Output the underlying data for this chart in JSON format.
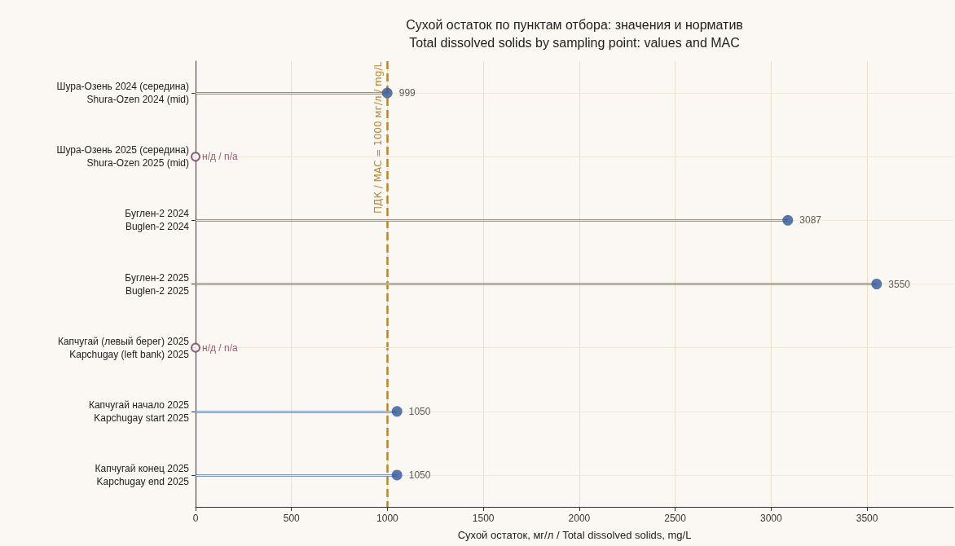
{
  "chart_data": {
    "type": "lollipop",
    "orientation": "horizontal",
    "title": "Сухой остаток по пунктам отбора: значения и норматив\nTotal dissolved solids by sampling point: values and MAC",
    "xlabel": "Сухой остаток, мг/л / Total dissolved solids, mg/L",
    "categories": [
      "Шура-Озень 2024 (середина)\nShura-Ozen 2024 (mid)",
      "Шура-Озень 2025 (середина)\nShura-Ozen 2025 (mid)",
      "Буглен-2 2024\nBuglen-2 2024",
      "Буглен-2 2025\nBuglen-2 2025",
      "Капчугай (левый берег) 2025\nKapchugay (left bank) 2025",
      "Капчугай начало 2025\nKapchugay start 2025",
      "Капчугай конец 2025\nKapchugay end 2025"
    ],
    "series": [
      {
        "color": "#2f5597",
        "values": [
          999,
          null,
          3087,
          3550,
          null,
          1050,
          1050
        ]
      }
    ],
    "xlim": [
      0,
      3950
    ],
    "xticks": [
      0,
      500,
      1000,
      1500,
      2000,
      2500,
      3000,
      3500
    ],
    "ref_lines": [
      {
        "axis": "x",
        "value": 1000,
        "label": "ПДК / MAC = 1000 мг/л / mg/L",
        "color": "#b8862b",
        "line_style": "dashed"
      }
    ],
    "annotations": [
      {
        "text": "н/д / n/a",
        "x": 0,
        "y": "Шура-Озень 2025 (середина)\nShura-Ozen 2025 (mid)"
      },
      {
        "text": "н/д / n/a",
        "x": 0,
        "y": "Капчугай (левый берег) 2025\nKapchugay (left bank) 2025"
      }
    ],
    "data_labels": true,
    "grid": true,
    "marker": "circle"
  }
}
